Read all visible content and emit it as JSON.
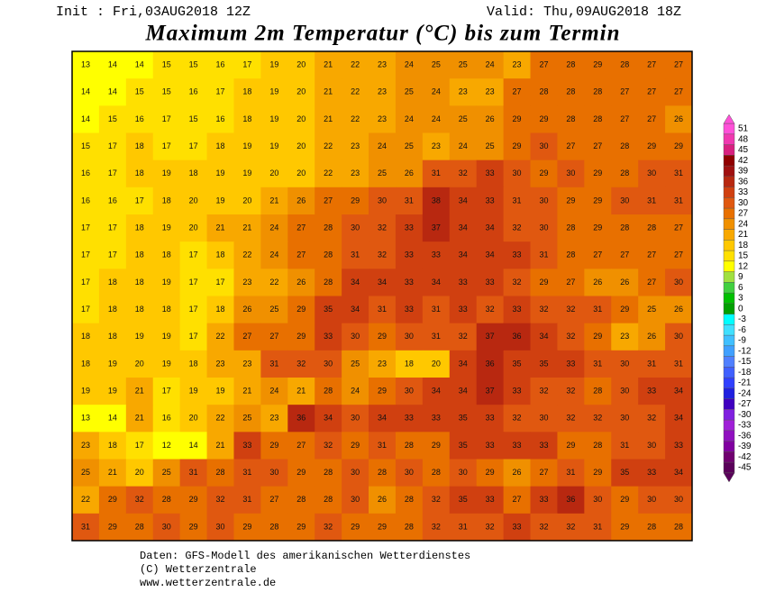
{
  "header": {
    "init": "Init : Fri,03AUG2018 12Z",
    "valid": "Valid: Thu,09AUG2018 18Z",
    "title": "Maximum 2m Temperatur (°C) bis zum Termin"
  },
  "footer": {
    "lines": [
      "Daten: GFS-Modell des amerikanischen Wetterdienstes",
      "(C) Wetterzentrale",
      "www.wetterzentrale.de"
    ]
  },
  "colorbar": {
    "levels": [
      51,
      48,
      45,
      42,
      39,
      36,
      33,
      30,
      27,
      24,
      21,
      18,
      15,
      12,
      9,
      6,
      3,
      0,
      -3,
      -6,
      -9,
      -12,
      -15,
      -18,
      -21,
      -24,
      -27,
      -30,
      -33,
      -36,
      -39,
      -42,
      -45
    ],
    "colors": [
      "#ff50d8",
      "#f038b0",
      "#d82080",
      "#900000",
      "#a01010",
      "#b82810",
      "#d04010",
      "#e05810",
      "#e87000",
      "#f09000",
      "#f8a800",
      "#ffc800",
      "#ffe000",
      "#ffff00",
      "#a0e040",
      "#40d040",
      "#00c000",
      "#00a000",
      "#00ffff",
      "#40e0ff",
      "#40c0ff",
      "#40a0ff",
      "#5080ff",
      "#4060ff",
      "#3040ff",
      "#2020e0",
      "#4000c0",
      "#8020e0",
      "#a020d8",
      "#9010c0",
      "#8000a0",
      "#700070",
      "#5a005a"
    ]
  },
  "map": {
    "rows": [
      [
        13,
        14,
        14,
        15,
        15,
        16,
        17,
        19,
        20,
        21,
        22,
        23,
        24,
        25,
        25,
        24,
        23,
        27,
        28,
        29,
        28,
        27,
        27
      ],
      [
        14,
        14,
        15,
        15,
        16,
        17,
        18,
        19,
        20,
        21,
        22,
        23,
        25,
        24,
        23,
        23,
        27,
        28,
        28,
        28,
        27,
        27,
        27
      ],
      [
        14,
        15,
        16,
        17,
        15,
        16,
        18,
        19,
        20,
        21,
        22,
        23,
        24,
        24,
        25,
        26,
        29,
        29,
        28,
        28,
        27,
        27,
        26
      ],
      [
        15,
        17,
        18,
        17,
        17,
        18,
        19,
        19,
        20,
        22,
        23,
        24,
        25,
        23,
        24,
        25,
        29,
        30,
        27,
        27,
        28,
        29,
        29
      ],
      [
        16,
        17,
        18,
        19,
        18,
        19,
        19,
        20,
        20,
        22,
        23,
        25,
        26,
        31,
        32,
        33,
        30,
        29,
        30,
        29,
        28,
        30,
        31
      ],
      [
        16,
        16,
        17,
        18,
        20,
        19,
        20,
        21,
        26,
        27,
        29,
        30,
        31,
        38,
        34,
        33,
        31,
        30,
        29,
        29,
        30,
        31,
        31
      ],
      [
        17,
        17,
        18,
        19,
        20,
        21,
        21,
        24,
        27,
        28,
        30,
        32,
        33,
        37,
        34,
        34,
        32,
        30,
        28,
        29,
        28,
        28,
        27
      ],
      [
        17,
        17,
        18,
        18,
        17,
        18,
        22,
        24,
        27,
        28,
        31,
        32,
        33,
        33,
        34,
        34,
        33,
        31,
        28,
        27,
        27,
        27,
        27
      ],
      [
        17,
        18,
        18,
        19,
        17,
        17,
        23,
        22,
        26,
        28,
        34,
        34,
        33,
        34,
        33,
        33,
        32,
        29,
        27,
        26,
        26,
        27,
        30
      ],
      [
        17,
        18,
        18,
        18,
        17,
        18,
        26,
        25,
        29,
        35,
        34,
        31,
        33,
        31,
        33,
        32,
        33,
        32,
        32,
        31,
        29,
        25,
        26
      ],
      [
        18,
        18,
        19,
        19,
        17,
        22,
        27,
        27,
        29,
        33,
        30,
        29,
        30,
        31,
        32,
        37,
        36,
        34,
        32,
        29,
        23,
        26,
        30
      ],
      [
        18,
        19,
        20,
        19,
        18,
        23,
        23,
        31,
        32,
        30,
        25,
        23,
        18,
        20,
        34,
        36,
        35,
        35,
        33,
        31,
        30,
        31,
        31
      ],
      [
        19,
        19,
        21,
        17,
        19,
        19,
        21,
        24,
        21,
        28,
        24,
        29,
        30,
        34,
        34,
        37,
        33,
        32,
        32,
        28,
        30,
        33,
        34
      ],
      [
        13,
        14,
        21,
        16,
        20,
        22,
        25,
        23,
        36,
        34,
        30,
        34,
        33,
        33,
        35,
        33,
        32,
        30,
        32,
        32,
        30,
        32,
        34
      ],
      [
        23,
        18,
        17,
        12,
        14,
        21,
        33,
        29,
        27,
        32,
        29,
        31,
        28,
        29,
        35,
        33,
        33,
        33,
        29,
        28,
        31,
        30,
        33
      ],
      [
        25,
        21,
        20,
        25,
        31,
        28,
        31,
        30,
        29,
        28,
        30,
        28,
        30,
        28,
        30,
        29,
        26,
        27,
        31,
        29,
        35,
        33,
        34
      ],
      [
        22,
        29,
        32,
        28,
        29,
        32,
        31,
        27,
        28,
        28,
        30,
        26,
        28,
        32,
        35,
        33,
        27,
        33,
        36,
        30,
        29,
        30,
        30
      ],
      [
        31,
        29,
        28,
        30,
        29,
        30,
        29,
        28,
        29,
        32,
        29,
        29,
        28,
        32,
        31,
        32,
        33,
        32,
        32,
        31,
        29,
        28,
        28
      ]
    ]
  }
}
